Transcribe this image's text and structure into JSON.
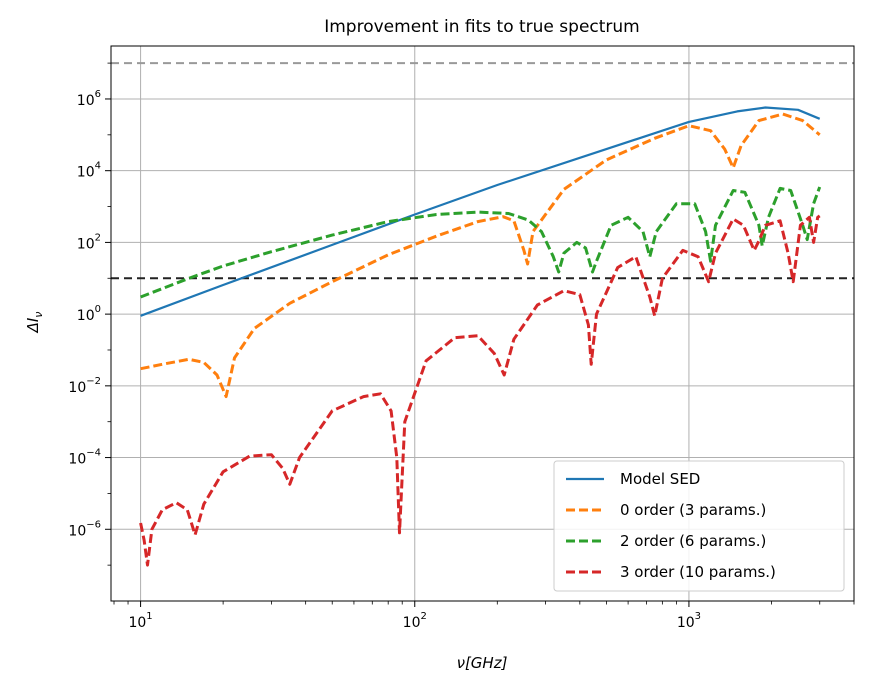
{
  "chart_data": {
    "type": "line",
    "title": "Improvement in fits to true spectrum",
    "xlabel": "ν[GHz]",
    "ylabel": "ΔI",
    "ylabel_sub": "ν",
    "x_scale": "log",
    "y_scale": "log",
    "xlim": [
      7.8,
      4000
    ],
    "ylim": [
      1e-08,
      30000000.0
    ],
    "grid": true,
    "legend_position": "lower-right",
    "x_ticks": [
      {
        "value": 10,
        "base": "10",
        "exp": "1"
      },
      {
        "value": 100,
        "base": "10",
        "exp": "2"
      },
      {
        "value": 1000,
        "base": "10",
        "exp": "3"
      }
    ],
    "y_ticks": [
      {
        "value": 1e-06,
        "base": "10",
        "exp": "−6"
      },
      {
        "value": 0.0001,
        "base": "10",
        "exp": "−4"
      },
      {
        "value": 0.01,
        "base": "10",
        "exp": "−2"
      },
      {
        "value": 1,
        "base": "10",
        "exp": "0"
      },
      {
        "value": 100,
        "base": "10",
        "exp": "2"
      },
      {
        "value": 10000.0,
        "base": "10",
        "exp": "4"
      },
      {
        "value": 1000000.0,
        "base": "10",
        "exp": "6"
      }
    ],
    "hlines": [
      {
        "y": 10000000.0,
        "color": "#999999",
        "style": "dashed"
      },
      {
        "y": 10,
        "color": "#222222",
        "style": "dashed"
      }
    ],
    "series": [
      {
        "name": "Model SED",
        "color": "#1f77b4",
        "style": "solid",
        "points": [
          [
            10,
            0.9
          ],
          [
            20,
            6.5
          ],
          [
            50,
            85
          ],
          [
            100,
            600
          ],
          [
            200,
            4000
          ],
          [
            500,
            40000
          ],
          [
            1000,
            230000
          ],
          [
            1500,
            450000
          ],
          [
            1900,
            580000
          ],
          [
            2500,
            500000
          ],
          [
            3000,
            280000
          ]
        ]
      },
      {
        "name": "0 order (3 params.)",
        "color": "#ff7f0e",
        "style": "dashed",
        "points": [
          [
            10,
            0.03
          ],
          [
            12,
            0.04
          ],
          [
            15,
            0.055
          ],
          [
            17,
            0.045
          ],
          [
            19,
            0.02
          ],
          [
            20.5,
            0.005
          ],
          [
            22,
            0.06
          ],
          [
            26,
            0.4
          ],
          [
            35,
            2
          ],
          [
            50,
            8
          ],
          [
            80,
            45
          ],
          [
            120,
            150
          ],
          [
            170,
            380
          ],
          [
            210,
            520
          ],
          [
            230,
            400
          ],
          [
            250,
            60
          ],
          [
            258,
            25
          ],
          [
            270,
            200
          ],
          [
            350,
            3000
          ],
          [
            500,
            20000
          ],
          [
            750,
            80000
          ],
          [
            1000,
            180000
          ],
          [
            1200,
            130000
          ],
          [
            1350,
            40000
          ],
          [
            1450,
            12000
          ],
          [
            1550,
            50000
          ],
          [
            1800,
            250000
          ],
          [
            2200,
            380000
          ],
          [
            2600,
            250000
          ],
          [
            3000,
            100000
          ]
        ]
      },
      {
        "name": "2 order (6 params.)",
        "color": "#2ca02c",
        "style": "dashed",
        "points": [
          [
            10,
            3
          ],
          [
            15,
            10
          ],
          [
            20,
            22
          ],
          [
            30,
            55
          ],
          [
            50,
            160
          ],
          [
            80,
            380
          ],
          [
            120,
            600
          ],
          [
            170,
            700
          ],
          [
            220,
            640
          ],
          [
            260,
            420
          ],
          [
            290,
            200
          ],
          [
            320,
            40
          ],
          [
            335,
            15
          ],
          [
            350,
            50
          ],
          [
            390,
            100
          ],
          [
            420,
            70
          ],
          [
            445,
            15
          ],
          [
            460,
            30
          ],
          [
            520,
            300
          ],
          [
            600,
            500
          ],
          [
            680,
            200
          ],
          [
            720,
            40
          ],
          [
            760,
            200
          ],
          [
            900,
            1200
          ],
          [
            1050,
            1200
          ],
          [
            1150,
            200
          ],
          [
            1200,
            30
          ],
          [
            1250,
            300
          ],
          [
            1450,
            2800
          ],
          [
            1600,
            2500
          ],
          [
            1800,
            300
          ],
          [
            1850,
            80
          ],
          [
            1950,
            500
          ],
          [
            2150,
            3200
          ],
          [
            2350,
            2800
          ],
          [
            2600,
            300
          ],
          [
            2700,
            120
          ],
          [
            2850,
            1200
          ],
          [
            3000,
            3500
          ]
        ]
      },
      {
        "name": "3 order (10 params.)",
        "color": "#d62728",
        "style": "dashed",
        "points": [
          [
            10,
            1.5e-06
          ],
          [
            10.3,
            5e-07
          ],
          [
            10.6,
            1e-07
          ],
          [
            11,
            1e-06
          ],
          [
            12,
            3.5e-06
          ],
          [
            13.5,
            5.5e-06
          ],
          [
            14.8,
            3.5e-06
          ],
          [
            15.8,
            7e-07
          ],
          [
            17,
            5e-06
          ],
          [
            20,
            4e-05
          ],
          [
            25,
            0.00011
          ],
          [
            30,
            0.00012
          ],
          [
            33,
            5e-05
          ],
          [
            35,
            1.8e-05
          ],
          [
            38,
            0.0001
          ],
          [
            50,
            0.002
          ],
          [
            65,
            0.005
          ],
          [
            75,
            0.006
          ],
          [
            82,
            0.002
          ],
          [
            86,
            0.0001
          ],
          [
            88,
            8e-07
          ],
          [
            92,
            0.001
          ],
          [
            110,
            0.05
          ],
          [
            140,
            0.22
          ],
          [
            170,
            0.25
          ],
          [
            195,
            0.08
          ],
          [
            212,
            0.02
          ],
          [
            230,
            0.2
          ],
          [
            280,
            1.8
          ],
          [
            350,
            4.5
          ],
          [
            400,
            3.5
          ],
          [
            430,
            0.5
          ],
          [
            440,
            0.04
          ],
          [
            460,
            1
          ],
          [
            550,
            20
          ],
          [
            640,
            40
          ],
          [
            720,
            3
          ],
          [
            750,
            0.9
          ],
          [
            800,
            10
          ],
          [
            950,
            60
          ],
          [
            1080,
            40
          ],
          [
            1180,
            8
          ],
          [
            1250,
            50
          ],
          [
            1450,
            450
          ],
          [
            1580,
            300
          ],
          [
            1730,
            60
          ],
          [
            1800,
            110
          ],
          [
            1900,
            300
          ],
          [
            2150,
            400
          ],
          [
            2300,
            50
          ],
          [
            2400,
            8
          ],
          [
            2550,
            300
          ],
          [
            2750,
            500
          ],
          [
            2850,
            100
          ],
          [
            2950,
            500
          ],
          [
            3000,
            550
          ]
        ]
      }
    ]
  }
}
